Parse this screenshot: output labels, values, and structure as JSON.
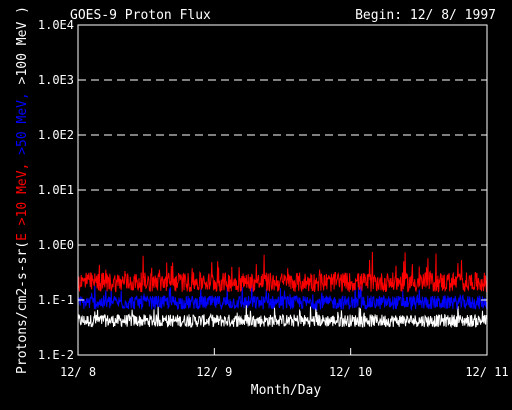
{
  "chart_data": {
    "type": "line",
    "title": "GOES-9 Proton Flux",
    "begin_label": "Begin: 12/ 8/ 1997",
    "xlabel": "Month/Day",
    "ylabel_parts": [
      {
        "text": "Protons/cm2-s-sr(",
        "color": "#ffffff"
      },
      {
        "text": "E >10 MeV, ",
        "color": "#ff0000"
      },
      {
        "text": ">50 MeV, ",
        "color": "#0000ff"
      },
      {
        "text": ">100 MeV )",
        "color": "#ffffff"
      }
    ],
    "y_scale": "log",
    "ylim": [
      0.01,
      10000
    ],
    "y_ticks": [
      {
        "value": 0.01,
        "label": "1.E-2"
      },
      {
        "value": 0.1,
        "label": "1.E-1"
      },
      {
        "value": 1,
        "label": "1.0E0"
      },
      {
        "value": 10,
        "label": "1.0E1"
      },
      {
        "value": 100,
        "label": "1.0E2"
      },
      {
        "value": 1000,
        "label": "1.0E3"
      },
      {
        "value": 10000,
        "label": "1.0E4"
      }
    ],
    "grid_y_values": [
      1,
      10,
      100,
      1000
    ],
    "x_ticks": [
      "12/ 8",
      "12/ 9",
      "12/ 10",
      "12/ 11"
    ],
    "series": [
      {
        "color": "#ff0000",
        "typical": 0.21,
        "low": 0.12,
        "high": 0.75
      },
      {
        "color": "#0000ff",
        "typical": 0.09,
        "low": 0.055,
        "high": 0.2
      },
      {
        "color": "#ffffff",
        "typical": 0.042,
        "low": 0.026,
        "high": 0.085
      }
    ]
  }
}
